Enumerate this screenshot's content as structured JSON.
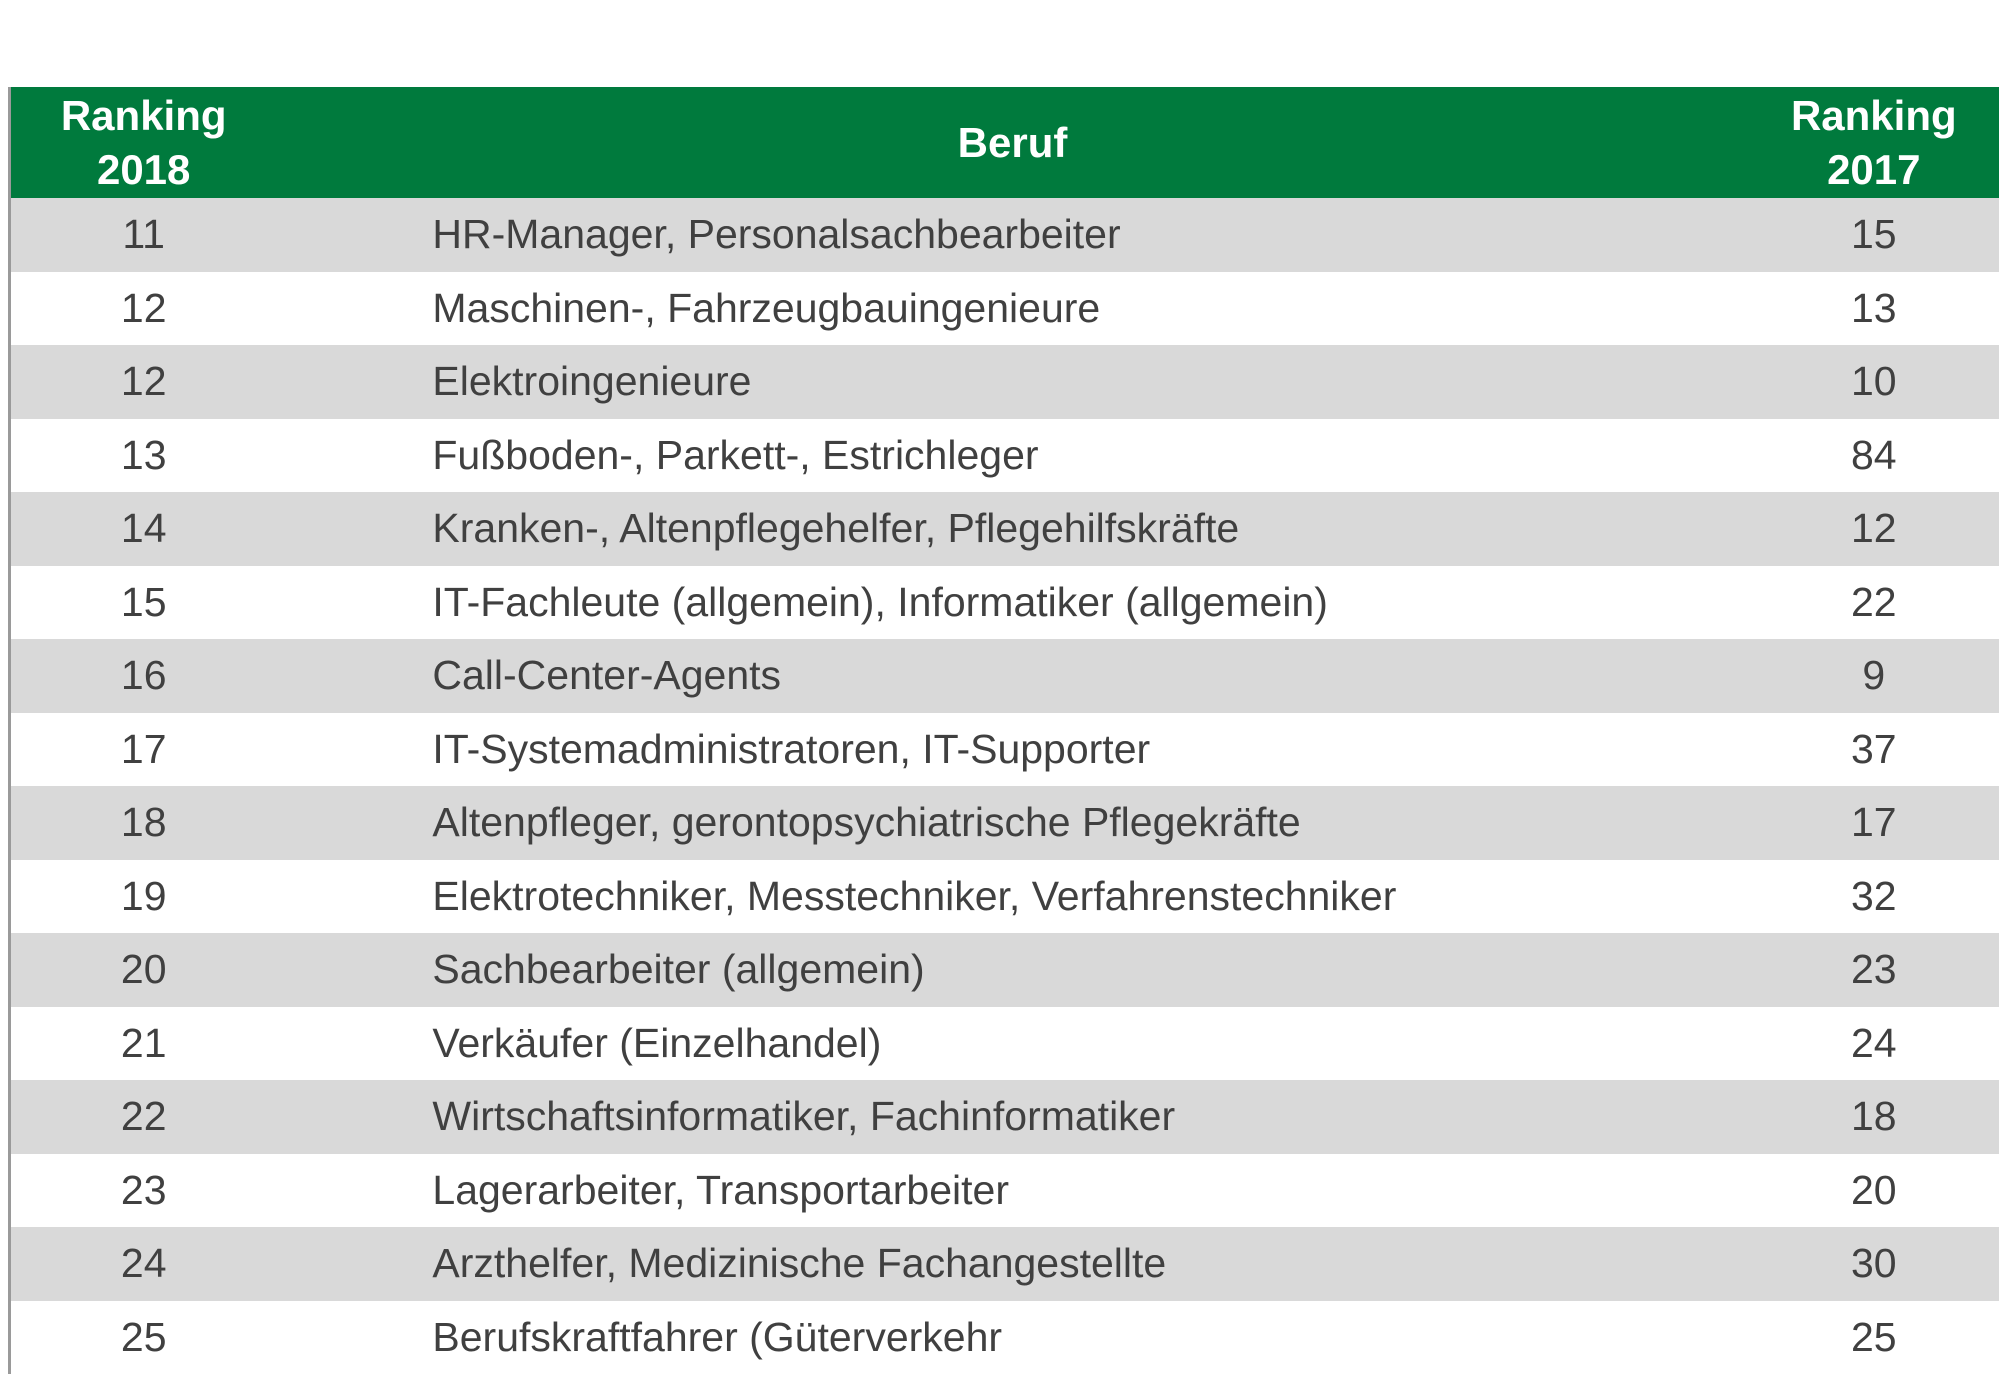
{
  "table": {
    "header": [
      [
        "Ranking",
        "2018"
      ],
      [
        "Beruf"
      ],
      [
        "Ranking",
        "2017"
      ]
    ],
    "rows": [
      [
        11,
        "HR-Manager, Personalsachbearbeiter",
        15
      ],
      [
        12,
        "Maschinen-, Fahrzeugbauingenieure",
        13
      ],
      [
        12,
        "Elektroingenieure",
        10
      ],
      [
        13,
        "Fußboden-, Parkett-, Estrichleger",
        84
      ],
      [
        14,
        "Kranken-, Altenpflegehelfer, Pflegehilfskräfte",
        12
      ],
      [
        15,
        "IT-Fachleute (allgemein), Informatiker (allgemein)",
        22
      ],
      [
        16,
        "Call-Center-Agents",
        9
      ],
      [
        17,
        "IT-Systemadministratoren, IT-Supporter",
        37
      ],
      [
        18,
        "Altenpfleger, gerontopsychiatrische Pflegekräfte",
        17
      ],
      [
        19,
        "Elektrotechniker, Messtechniker, Verfahrenstechniker",
        32
      ],
      [
        20,
        "Sachbearbeiter (allgemein)",
        23
      ],
      [
        21,
        "Verkäufer (Einzelhandel)",
        24
      ],
      [
        22,
        "Wirtschaftsinformatiker, Fachinformatiker",
        18
      ],
      [
        23,
        "Lagerarbeiter, Transportarbeiter",
        20
      ],
      [
        24,
        "Arzthelfer, Medizinische Fachangestellte",
        30
      ],
      [
        25,
        "Berufskraftfahrer (Güterverkehr",
        25
      ]
    ]
  }
}
